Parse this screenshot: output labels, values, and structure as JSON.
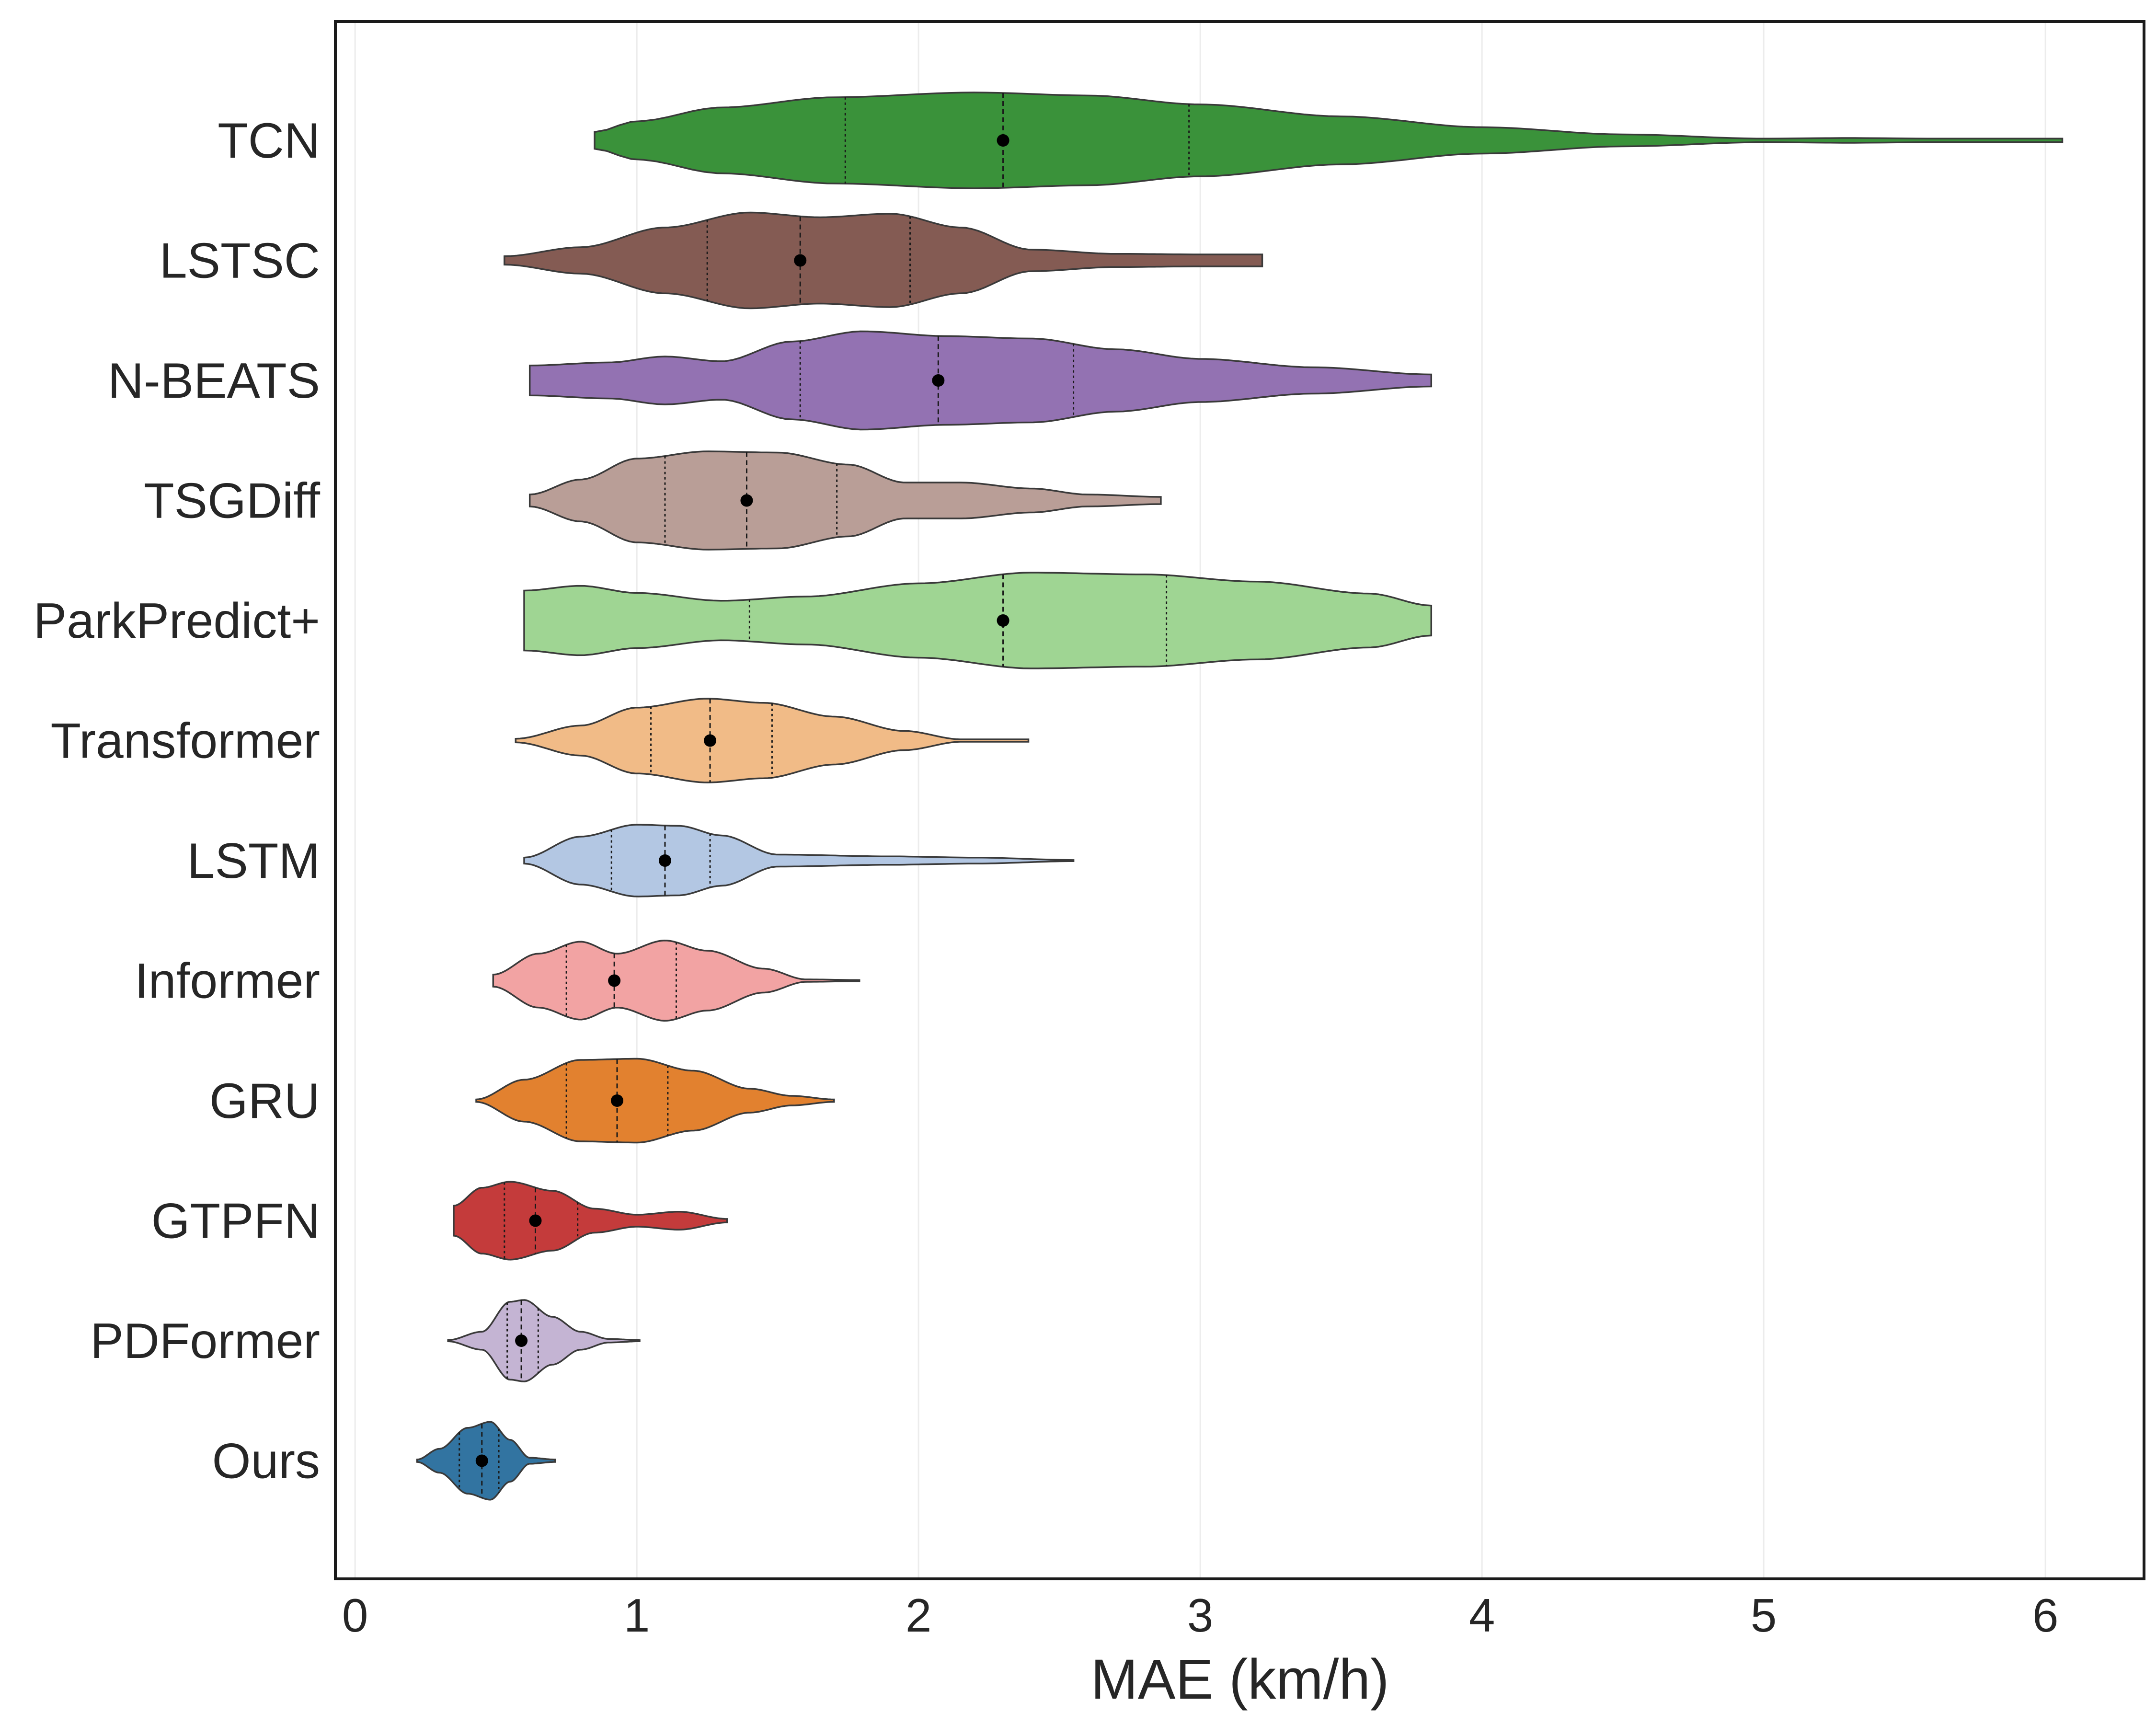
{
  "chart_data": {
    "type": "violin",
    "title": "",
    "xlabel": "MAE (km/h)",
    "ylabel": "",
    "xlim": [
      -0.07,
      6.35
    ],
    "xticks": [
      0,
      1,
      2,
      3,
      4,
      5,
      6
    ],
    "grid": "vertical-light",
    "series": [
      {
        "name": "TCN",
        "color": "#3a923a",
        "min": 0.85,
        "max": 6.06,
        "q1": 1.74,
        "median": 2.3,
        "q3": 2.96,
        "mean": 2.3,
        "density": [
          [
            0.85,
            0.14
          ],
          [
            1.0,
            0.32
          ],
          [
            1.3,
            0.55
          ],
          [
            1.7,
            0.72
          ],
          [
            2.2,
            0.8
          ],
          [
            2.6,
            0.75
          ],
          [
            3.0,
            0.6
          ],
          [
            3.5,
            0.4
          ],
          [
            4.0,
            0.22
          ],
          [
            4.5,
            0.1
          ],
          [
            5.0,
            0.03
          ],
          [
            5.3,
            0.04
          ],
          [
            5.6,
            0.03
          ],
          [
            6.06,
            0.03
          ]
        ]
      },
      {
        "name": "LSTSC",
        "color": "#845b53",
        "min": 0.53,
        "max": 3.22,
        "q1": 1.25,
        "median": 1.58,
        "q3": 1.97,
        "mean": 1.58,
        "density": [
          [
            0.53,
            0.07
          ],
          [
            0.8,
            0.22
          ],
          [
            1.1,
            0.55
          ],
          [
            1.4,
            0.8
          ],
          [
            1.65,
            0.72
          ],
          [
            1.9,
            0.78
          ],
          [
            2.15,
            0.55
          ],
          [
            2.4,
            0.18
          ],
          [
            2.7,
            0.11
          ],
          [
            3.0,
            0.1
          ],
          [
            3.22,
            0.1
          ]
        ]
      },
      {
        "name": "N-BEATS",
        "color": "#9372b2",
        "min": 0.62,
        "max": 3.82,
        "q1": 1.58,
        "median": 2.07,
        "q3": 2.55,
        "mean": 2.07,
        "density": [
          [
            0.62,
            0.25
          ],
          [
            0.9,
            0.3
          ],
          [
            1.1,
            0.4
          ],
          [
            1.3,
            0.32
          ],
          [
            1.55,
            0.65
          ],
          [
            1.8,
            0.82
          ],
          [
            2.1,
            0.74
          ],
          [
            2.4,
            0.7
          ],
          [
            2.7,
            0.52
          ],
          [
            3.0,
            0.36
          ],
          [
            3.4,
            0.22
          ],
          [
            3.82,
            0.1
          ]
        ]
      },
      {
        "name": "TSGDiff",
        "color": "#b99e97",
        "min": 0.62,
        "max": 2.86,
        "q1": 1.1,
        "median": 1.39,
        "q3": 1.71,
        "mean": 1.39,
        "density": [
          [
            0.62,
            0.1
          ],
          [
            0.8,
            0.35
          ],
          [
            1.0,
            0.7
          ],
          [
            1.25,
            0.82
          ],
          [
            1.5,
            0.8
          ],
          [
            1.75,
            0.6
          ],
          [
            1.95,
            0.3
          ],
          [
            2.15,
            0.3
          ],
          [
            2.4,
            0.2
          ],
          [
            2.6,
            0.1
          ],
          [
            2.86,
            0.06
          ]
        ]
      },
      {
        "name": "ParkPredict+",
        "color": "#9fd593",
        "min": 0.6,
        "max": 3.82,
        "q1": 1.4,
        "median": 2.3,
        "q3": 2.88,
        "mean": 2.3,
        "density": [
          [
            0.6,
            0.5
          ],
          [
            0.8,
            0.58
          ],
          [
            1.0,
            0.46
          ],
          [
            1.3,
            0.33
          ],
          [
            1.6,
            0.4
          ],
          [
            2.0,
            0.62
          ],
          [
            2.4,
            0.8
          ],
          [
            2.8,
            0.77
          ],
          [
            3.2,
            0.65
          ],
          [
            3.6,
            0.45
          ],
          [
            3.82,
            0.25
          ]
        ]
      },
      {
        "name": "Transformer",
        "color": "#f1bb87",
        "min": 0.57,
        "max": 2.39,
        "q1": 1.05,
        "median": 1.26,
        "q3": 1.48,
        "mean": 1.26,
        "density": [
          [
            0.57,
            0.03
          ],
          [
            0.8,
            0.25
          ],
          [
            1.0,
            0.55
          ],
          [
            1.25,
            0.7
          ],
          [
            1.45,
            0.63
          ],
          [
            1.7,
            0.4
          ],
          [
            1.95,
            0.16
          ],
          [
            2.15,
            0.02
          ],
          [
            2.39,
            0.02
          ]
        ]
      },
      {
        "name": "LSTM",
        "color": "#b3c7e3",
        "min": 0.6,
        "max": 2.55,
        "q1": 0.91,
        "median": 1.1,
        "q3": 1.26,
        "mean": 1.1,
        "density": [
          [
            0.6,
            0.05
          ],
          [
            0.8,
            0.4
          ],
          [
            1.0,
            0.6
          ],
          [
            1.15,
            0.58
          ],
          [
            1.3,
            0.42
          ],
          [
            1.5,
            0.1
          ],
          [
            1.9,
            0.07
          ],
          [
            2.2,
            0.05
          ],
          [
            2.55,
            0.01
          ]
        ]
      },
      {
        "name": "Informer",
        "color": "#f2a3a3",
        "min": 0.49,
        "max": 1.79,
        "q1": 0.75,
        "median": 0.92,
        "q3": 1.14,
        "mean": 0.92,
        "density": [
          [
            0.49,
            0.1
          ],
          [
            0.65,
            0.45
          ],
          [
            0.8,
            0.65
          ],
          [
            0.93,
            0.45
          ],
          [
            1.1,
            0.67
          ],
          [
            1.25,
            0.5
          ],
          [
            1.45,
            0.2
          ],
          [
            1.6,
            0.02
          ],
          [
            1.79,
            0.01
          ]
        ]
      },
      {
        "name": "GRU",
        "color": "#e2812f",
        "min": 0.43,
        "max": 1.7,
        "q1": 0.75,
        "median": 0.93,
        "q3": 1.11,
        "mean": 0.93,
        "density": [
          [
            0.43,
            0.02
          ],
          [
            0.6,
            0.35
          ],
          [
            0.8,
            0.68
          ],
          [
            1.0,
            0.7
          ],
          [
            1.2,
            0.5
          ],
          [
            1.4,
            0.2
          ],
          [
            1.55,
            0.08
          ],
          [
            1.7,
            0.02
          ]
        ]
      },
      {
        "name": "GTPFN",
        "color": "#c43b3b",
        "min": 0.35,
        "max": 1.32,
        "q1": 0.53,
        "median": 0.64,
        "q3": 0.79,
        "mean": 0.64,
        "density": [
          [
            0.35,
            0.25
          ],
          [
            0.45,
            0.55
          ],
          [
            0.55,
            0.65
          ],
          [
            0.7,
            0.5
          ],
          [
            0.85,
            0.2
          ],
          [
            1.0,
            0.1
          ],
          [
            1.15,
            0.15
          ],
          [
            1.32,
            0.03
          ]
        ]
      },
      {
        "name": "PDFormer",
        "color": "#c4b4d3",
        "min": 0.33,
        "max": 1.01,
        "q1": 0.54,
        "median": 0.59,
        "q3": 0.65,
        "mean": 0.59,
        "density": [
          [
            0.33,
            0.01
          ],
          [
            0.45,
            0.15
          ],
          [
            0.55,
            0.65
          ],
          [
            0.6,
            0.68
          ],
          [
            0.7,
            0.4
          ],
          [
            0.8,
            0.15
          ],
          [
            0.9,
            0.03
          ],
          [
            1.01,
            0.01
          ]
        ]
      },
      {
        "name": "Ours",
        "color": "#3274a1",
        "min": 0.22,
        "max": 0.71,
        "q1": 0.37,
        "median": 0.45,
        "q3": 0.51,
        "mean": 0.45,
        "density": [
          [
            0.22,
            0.02
          ],
          [
            0.3,
            0.2
          ],
          [
            0.4,
            0.55
          ],
          [
            0.48,
            0.65
          ],
          [
            0.55,
            0.35
          ],
          [
            0.62,
            0.05
          ],
          [
            0.71,
            0.02
          ]
        ]
      }
    ]
  }
}
